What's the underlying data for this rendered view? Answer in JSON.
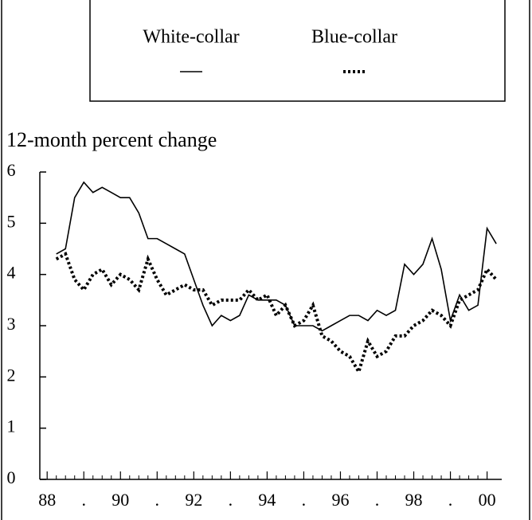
{
  "chart_data": {
    "type": "line",
    "y_label": "12-month percent change",
    "x": [
      1988.25,
      1988.5,
      1988.75,
      1989,
      1989.25,
      1989.5,
      1989.75,
      1990,
      1990.25,
      1990.5,
      1990.75,
      1991,
      1991.25,
      1991.5,
      1991.75,
      1992,
      1992.25,
      1992.5,
      1992.75,
      1993,
      1993.25,
      1993.5,
      1993.75,
      1994,
      1994.25,
      1994.5,
      1994.75,
      1995,
      1995.25,
      1995.5,
      1995.75,
      1996,
      1996.25,
      1996.5,
      1996.75,
      1997,
      1997.25,
      1997.5,
      1997.75,
      1998,
      1998.25,
      1998.5,
      1998.75,
      1999,
      1999.25,
      1999.5,
      1999.75,
      2000,
      2000.25
    ],
    "series": [
      {
        "name": "White-collar",
        "color": "#000000",
        "values": [
          4.4,
          4.5,
          5.5,
          5.8,
          5.6,
          5.7,
          5.6,
          5.5,
          5.5,
          5.2,
          4.7,
          4.7,
          4.6,
          4.5,
          4.4,
          3.9,
          3.4,
          3.0,
          3.2,
          3.1,
          3.2,
          3.6,
          3.5,
          3.5,
          3.5,
          3.4,
          3.0,
          3.0,
          3.0,
          2.9,
          3.0,
          3.1,
          3.2,
          3.2,
          3.1,
          3.3,
          3.2,
          3.3,
          4.2,
          4.0,
          4.2,
          4.7,
          4.1,
          3.1,
          3.6,
          3.3,
          3.4,
          4.9,
          4.6
        ]
      },
      {
        "name": "Blue-collar",
        "color": "#000000",
        "values": [
          4.3,
          4.4,
          3.9,
          3.7,
          4.0,
          4.1,
          3.8,
          4.0,
          3.9,
          3.7,
          4.3,
          3.9,
          3.6,
          3.7,
          3.8,
          3.7,
          3.7,
          3.4,
          3.5,
          3.5,
          3.5,
          3.7,
          3.5,
          3.6,
          3.2,
          3.4,
          3.0,
          3.1,
          3.4,
          2.8,
          2.7,
          2.5,
          2.4,
          2.1,
          2.7,
          2.4,
          2.5,
          2.8,
          2.8,
          3.0,
          3.1,
          3.3,
          3.2,
          3.0,
          3.5,
          3.6,
          3.7,
          4.1,
          3.9
        ]
      }
    ],
    "xlim": [
      1987.8,
      2000.4
    ],
    "xticks": [
      {
        "value": 1988,
        "label": "88"
      },
      {
        "value": 1989,
        "label": "."
      },
      {
        "value": 1990,
        "label": "90"
      },
      {
        "value": 1991,
        "label": "."
      },
      {
        "value": 1992,
        "label": "92"
      },
      {
        "value": 1993,
        "label": "."
      },
      {
        "value": 1994,
        "label": "94"
      },
      {
        "value": 1995,
        "label": "."
      },
      {
        "value": 1996,
        "label": "96"
      },
      {
        "value": 1997,
        "label": "."
      },
      {
        "value": 1998,
        "label": "98"
      },
      {
        "value": 1999,
        "label": "."
      },
      {
        "value": 2000,
        "label": "00"
      }
    ],
    "ylim": [
      0,
      6
    ],
    "yticks": [
      0,
      1,
      2,
      3,
      4,
      5,
      6
    ]
  }
}
